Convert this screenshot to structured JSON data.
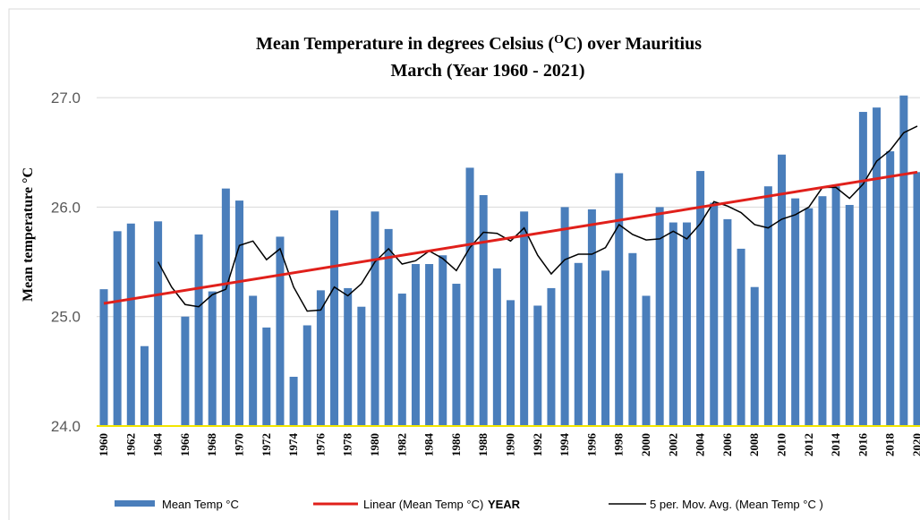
{
  "chart_data": {
    "type": "bar",
    "title": [
      "Mean Temperature  in degrees Celsius (",
      "O",
      "C)  over Mauritius"
    ],
    "subtitle": "March (Year 1960 - 2021)",
    "y_label": "Mean temperature °C",
    "x_label": "YEAR",
    "categories": [
      "1960",
      null,
      "1962",
      null,
      "1964",
      null,
      "1966",
      null,
      "1968",
      null,
      "1970",
      null,
      "1972",
      null,
      "1974",
      null,
      "1976",
      null,
      "1978",
      null,
      "1980",
      null,
      "1982",
      null,
      "1984",
      null,
      "1986",
      null,
      "1988",
      null,
      "1990",
      null,
      "1992",
      null,
      "1994",
      null,
      "1996",
      null,
      "1998",
      null,
      "2000",
      null,
      "2002",
      null,
      "2004",
      null,
      "2006",
      null,
      "2008",
      null,
      "2010",
      null,
      "2012",
      null,
      "2014",
      null,
      "2016",
      null,
      "2018",
      null,
      "2020"
    ],
    "series": [
      {
        "name": "Mean Temp °C",
        "color": "#4a7ebb",
        "values": [
          25.25,
          25.78,
          25.85,
          24.73,
          25.87,
          null,
          25.0,
          25.75,
          25.23,
          26.17,
          26.06,
          25.19,
          24.9,
          25.73,
          24.45,
          24.92,
          25.24,
          25.97,
          25.26,
          25.09,
          25.96,
          25.8,
          25.21,
          25.48,
          25.48,
          25.56,
          25.3,
          26.36,
          26.11,
          25.44,
          25.15,
          25.96,
          25.1,
          25.26,
          26.0,
          25.49,
          25.98,
          25.42,
          26.31,
          25.58,
          25.19,
          26.0,
          25.86,
          25.86,
          26.33,
          26.04,
          25.89,
          25.62,
          25.27,
          26.19,
          26.48,
          26.08,
          25.99,
          26.1,
          26.19,
          26.02,
          26.87,
          26.91,
          26.51,
          27.02,
          26.32
        ]
      },
      {
        "name": "5 per. Mov. Avg. (Mean Temp °C )",
        "color": "#000000",
        "values": [
          null,
          null,
          null,
          null,
          25.5,
          25.27,
          25.11,
          25.09,
          25.2,
          25.25,
          25.65,
          25.69,
          25.52,
          25.62,
          25.27,
          25.05,
          25.06,
          25.27,
          25.19,
          25.3,
          25.5,
          25.62,
          25.48,
          25.51,
          25.6,
          25.53,
          25.42,
          25.63,
          25.77,
          25.76,
          25.69,
          25.81,
          25.56,
          25.39,
          25.52,
          25.57,
          25.57,
          25.63,
          25.84,
          25.75,
          25.7,
          25.71,
          25.78,
          25.71,
          25.85,
          26.05,
          26.01,
          25.95,
          25.84,
          25.81,
          25.89,
          25.93,
          26.0,
          26.18,
          26.18,
          26.08,
          26.21,
          26.42,
          26.52,
          26.68,
          26.74
        ]
      }
    ],
    "trendline": {
      "name": "Linear (Mean Temp °C)",
      "color": "#e0201b",
      "start": 25.12,
      "end": 26.32
    },
    "ylim": [
      24,
      27.5
    ],
    "yticks": [
      {
        "value": 24,
        "label": "24.0"
      },
      {
        "value": 25,
        "label": "25.0"
      },
      {
        "value": 26,
        "label": "26.0"
      },
      {
        "value": 27,
        "label": "27.0"
      }
    ],
    "grid": true,
    "baseline_color": "#f2e600"
  }
}
